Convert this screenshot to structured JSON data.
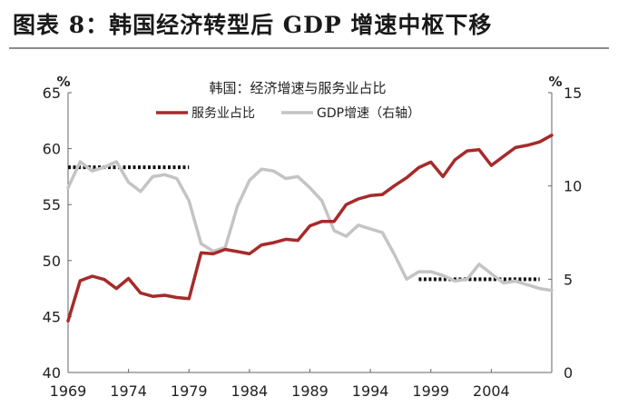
{
  "figure": {
    "title": "图表 8：韩国经济转型后 GDP 增速中枢下移"
  },
  "colors": {
    "services": "#a62a2a",
    "gdp": "#c4c4c4",
    "pivot": "#111111",
    "axis": "#666666",
    "text": "#222222"
  },
  "chart_data": {
    "type": "line",
    "title": "韩国：经济增速与服务业占比",
    "left_unit": "%",
    "right_unit": "%",
    "x": [
      1969,
      1970,
      1971,
      1972,
      1973,
      1974,
      1975,
      1976,
      1977,
      1978,
      1979,
      1980,
      1981,
      1982,
      1983,
      1984,
      1985,
      1986,
      1987,
      1988,
      1989,
      1990,
      1991,
      1992,
      1993,
      1994,
      1995,
      1996,
      1997,
      1998,
      1999,
      2000,
      2001,
      2002,
      2003,
      2004,
      2005,
      2006,
      2007,
      2008,
      2009
    ],
    "x_ticks": [
      "1969",
      "1974",
      "1979",
      "1984",
      "1989",
      "1994",
      "1999",
      "2004"
    ],
    "y_left": {
      "min": 40,
      "max": 65,
      "ticks": [
        "40",
        "45",
        "50",
        "55",
        "60",
        "65"
      ]
    },
    "y_right": {
      "min": 0,
      "max": 15,
      "ticks": [
        "0",
        "5",
        "10",
        "15"
      ]
    },
    "legend_position": "top-center",
    "series": [
      {
        "name": "服务业占比",
        "axis": "left",
        "values": [
          44.6,
          48.2,
          48.6,
          48.3,
          47.5,
          48.4,
          47.1,
          46.8,
          46.9,
          46.7,
          46.6,
          50.7,
          50.6,
          51.0,
          50.8,
          50.6,
          51.4,
          51.6,
          51.9,
          51.8,
          53.1,
          53.5,
          53.5,
          55.0,
          55.5,
          55.8,
          55.9,
          56.7,
          57.4,
          58.3,
          58.8,
          57.5,
          59.0,
          59.8,
          59.9,
          58.5,
          59.3,
          60.1,
          60.3,
          60.6,
          61.2
        ]
      },
      {
        "name": "GDP增速（右轴）",
        "axis": "right",
        "values": [
          9.9,
          11.3,
          10.8,
          11.0,
          11.3,
          10.2,
          9.7,
          10.5,
          10.6,
          10.4,
          9.2,
          6.9,
          6.5,
          6.7,
          8.9,
          10.3,
          10.9,
          10.8,
          10.4,
          10.5,
          9.9,
          9.2,
          7.6,
          7.3,
          7.9,
          7.7,
          7.5,
          6.3,
          5.0,
          5.4,
          5.4,
          5.2,
          4.9,
          5.0,
          5.8,
          5.3,
          4.8,
          4.9,
          4.7,
          4.5,
          4.4
        ]
      }
    ],
    "pivot_lines": [
      {
        "x_start": 1969,
        "x_end": 1979,
        "value": 11.0,
        "axis": "right"
      },
      {
        "x_start": 1998,
        "x_end": 2008,
        "value": 5.0,
        "axis": "right"
      }
    ]
  }
}
